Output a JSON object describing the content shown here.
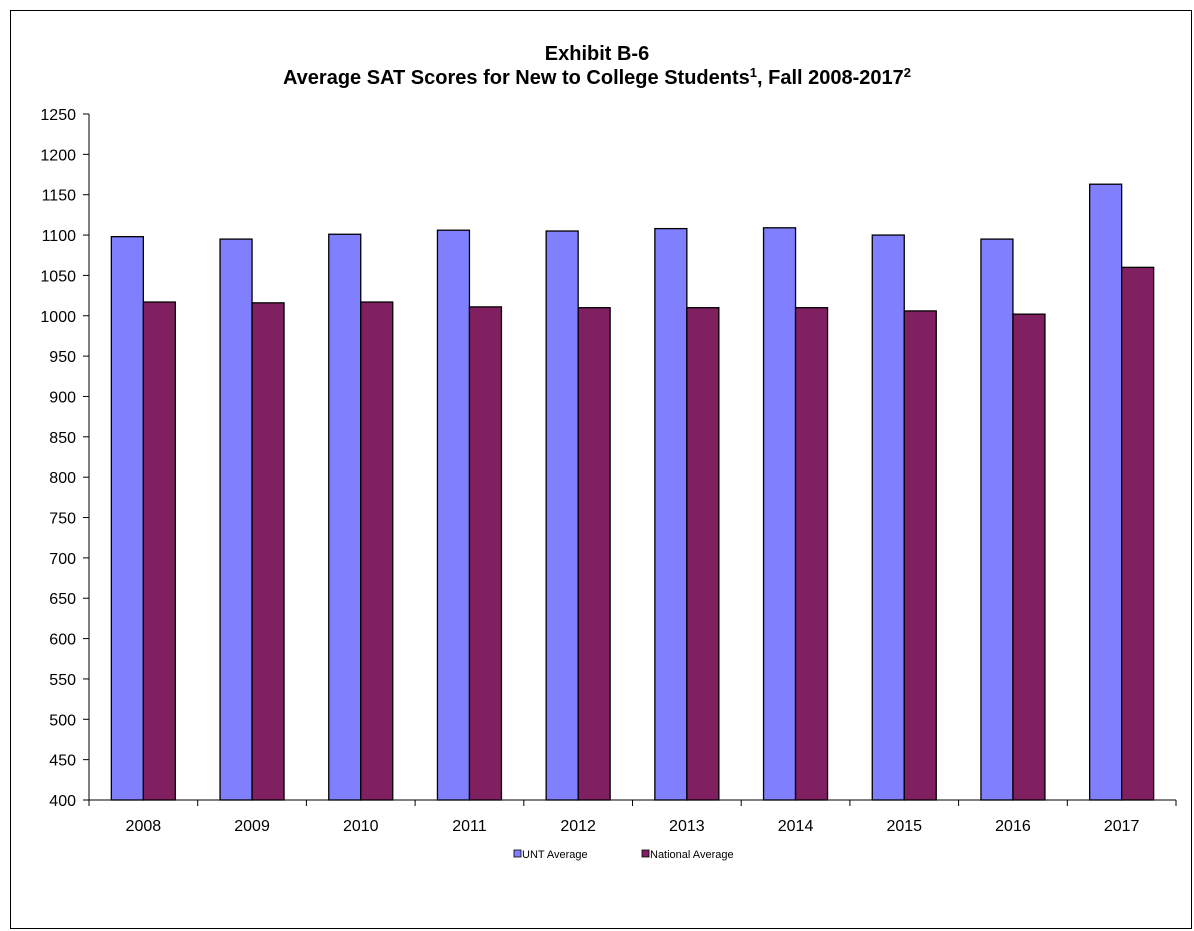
{
  "chart_data": {
    "type": "bar",
    "title_line1": "Exhibit B-6",
    "title_line2_main": "Average SAT Scores for New  to College Students",
    "title_line2_sup1": "1",
    "title_line2_mid": ", Fall 2008-2017",
    "title_line2_sup2": "2",
    "xlabel": "",
    "ylabel": "",
    "ylim": [
      400,
      1250
    ],
    "ytick_step": 50,
    "categories": [
      "2008",
      "2009",
      "2010",
      "2011",
      "2012",
      "2013",
      "2014",
      "2015",
      "2016",
      "2017"
    ],
    "series": [
      {
        "name": "UNT Average",
        "color": "#8080ff",
        "values": [
          1098,
          1095,
          1101,
          1106,
          1105,
          1108,
          1109,
          1100,
          1095,
          1163
        ]
      },
      {
        "name": "National Average",
        "color": "#802060",
        "values": [
          1017,
          1016,
          1017,
          1011,
          1010,
          1010,
          1010,
          1006,
          1002,
          1060
        ]
      }
    ],
    "legend_position": "bottom-center",
    "grid": false
  }
}
